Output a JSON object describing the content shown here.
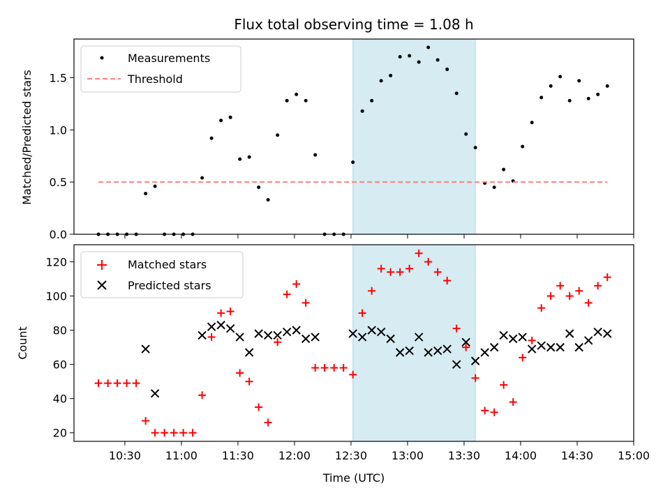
{
  "chart_data": [
    {
      "type": "scatter",
      "title": "Flux total observing time = 1.08 h",
      "xlabel": "",
      "ylabel": "Matched/Predicted stars",
      "xlim": [
        "10:03",
        "15:00"
      ],
      "ylim": [
        0,
        1.87
      ],
      "yticks": [
        "0.0",
        "0.5",
        "1.0",
        "1.5"
      ],
      "highlight_span": {
        "from": "12:31",
        "to": "13:36",
        "color": "#add8e6"
      },
      "legend": {
        "placement": "upper-left",
        "entries": [
          "Measurements",
          "Threshold"
        ]
      },
      "series": [
        {
          "name": "Measurements",
          "marker": "dot",
          "color": "#000000",
          "x": [
            "10:16",
            "10:21",
            "10:26",
            "10:31",
            "10:36",
            "10:41",
            "10:46",
            "10:51",
            "10:56",
            "11:01",
            "11:06",
            "11:11",
            "11:16",
            "11:21",
            "11:26",
            "11:31",
            "11:36",
            "11:41",
            "11:46",
            "11:51",
            "11:56",
            "12:01",
            "12:06",
            "12:11",
            "12:16",
            "12:21",
            "12:26",
            "12:31",
            "12:36",
            "12:41",
            "12:46",
            "12:51",
            "12:56",
            "13:01",
            "13:06",
            "13:11",
            "13:16",
            "13:21",
            "13:26",
            "13:31",
            "13:36",
            "13:41",
            "13:46",
            "13:51",
            "13:56",
            "14:01",
            "14:06",
            "14:11",
            "14:16",
            "14:21",
            "14:26",
            "14:31",
            "14:36",
            "14:41",
            "14:46"
          ],
          "y": [
            0,
            0,
            0,
            0,
            0,
            0.39,
            0.46,
            0,
            0,
            0,
            0,
            0.54,
            0.92,
            1.09,
            1.12,
            0.72,
            0.74,
            0.45,
            0.33,
            0.95,
            1.28,
            1.34,
            1.28,
            0.76,
            0,
            0,
            0,
            0.69,
            1.18,
            1.28,
            1.47,
            1.52,
            1.7,
            1.71,
            1.65,
            1.79,
            1.67,
            1.58,
            1.35,
            0.96,
            0.83,
            0.49,
            0.45,
            0.62,
            0.51,
            0.84,
            1.07,
            1.31,
            1.42,
            1.51,
            1.28,
            1.47,
            1.3,
            1.34,
            1.42
          ]
        },
        {
          "name": "Threshold",
          "style": "dashed",
          "color": "#ff7f7f",
          "x": [
            "10:16",
            "14:46"
          ],
          "y": [
            0.5,
            0.5
          ]
        }
      ]
    },
    {
      "type": "scatter",
      "title": "",
      "xlabel": "Time (UTC)",
      "ylabel": "Count",
      "xlim": [
        "10:03",
        "15:00"
      ],
      "ylim": [
        15,
        130
      ],
      "xticks": [
        "10:30",
        "11:00",
        "11:30",
        "12:00",
        "12:30",
        "13:00",
        "13:30",
        "14:00",
        "14:30",
        "15:00"
      ],
      "yticks": [
        "20",
        "40",
        "60",
        "80",
        "100",
        "120"
      ],
      "highlight_span": {
        "from": "12:31",
        "to": "13:36",
        "color": "#add8e6"
      },
      "legend": {
        "placement": "upper-left",
        "entries": [
          "Matched stars",
          "Predicted stars"
        ]
      },
      "series": [
        {
          "name": "Matched stars",
          "marker": "plus",
          "color": "#ff0000",
          "x": [
            "10:16",
            "10:21",
            "10:26",
            "10:31",
            "10:36",
            "10:41",
            "10:46",
            "10:51",
            "10:56",
            "11:01",
            "11:06",
            "11:11",
            "11:16",
            "11:21",
            "11:26",
            "11:31",
            "11:36",
            "11:41",
            "11:46",
            "11:51",
            "11:56",
            "12:01",
            "12:06",
            "12:11",
            "12:16",
            "12:21",
            "12:26",
            "12:31",
            "12:36",
            "12:41",
            "12:46",
            "12:51",
            "12:56",
            "13:01",
            "13:06",
            "13:11",
            "13:16",
            "13:21",
            "13:26",
            "13:31",
            "13:36",
            "13:41",
            "13:46",
            "13:51",
            "13:56",
            "14:01",
            "14:06",
            "14:11",
            "14:16",
            "14:21",
            "14:26",
            "14:31",
            "14:36",
            "14:41",
            "14:46"
          ],
          "y": [
            49,
            49,
            49,
            49,
            49,
            27,
            20,
            20,
            20,
            20,
            20,
            42,
            76,
            90,
            91,
            55,
            50,
            35,
            26,
            73,
            101,
            107,
            96,
            58,
            58,
            58,
            58,
            54,
            90,
            103,
            116,
            114,
            114,
            116,
            125,
            120,
            114,
            109,
            81,
            70,
            52,
            33,
            32,
            48,
            38,
            64,
            74,
            93,
            100,
            106,
            100,
            103,
            96,
            106,
            111
          ]
        },
        {
          "name": "Predicted stars",
          "marker": "x",
          "color": "#000000",
          "x": [
            "10:41",
            "10:46",
            "11:11",
            "11:16",
            "11:21",
            "11:26",
            "11:31",
            "11:36",
            "11:41",
            "11:46",
            "11:51",
            "11:56",
            "12:01",
            "12:06",
            "12:11",
            "12:31",
            "12:36",
            "12:41",
            "12:46",
            "12:51",
            "12:56",
            "13:01",
            "13:06",
            "13:11",
            "13:16",
            "13:21",
            "13:26",
            "13:31",
            "13:36",
            "13:41",
            "13:46",
            "13:51",
            "13:56",
            "14:01",
            "14:06",
            "14:11",
            "14:16",
            "14:21",
            "14:26",
            "14:31",
            "14:36",
            "14:41",
            "14:46"
          ],
          "y": [
            69,
            43,
            77,
            82,
            83,
            81,
            76,
            67,
            78,
            77,
            77,
            79,
            80,
            75,
            76,
            78,
            76,
            80,
            79,
            75,
            67,
            68,
            76,
            67,
            68,
            69,
            60,
            73,
            62,
            67,
            70,
            77,
            75,
            76,
            69,
            71,
            70,
            70,
            78,
            70,
            74,
            79,
            78
          ]
        }
      ]
    }
  ]
}
